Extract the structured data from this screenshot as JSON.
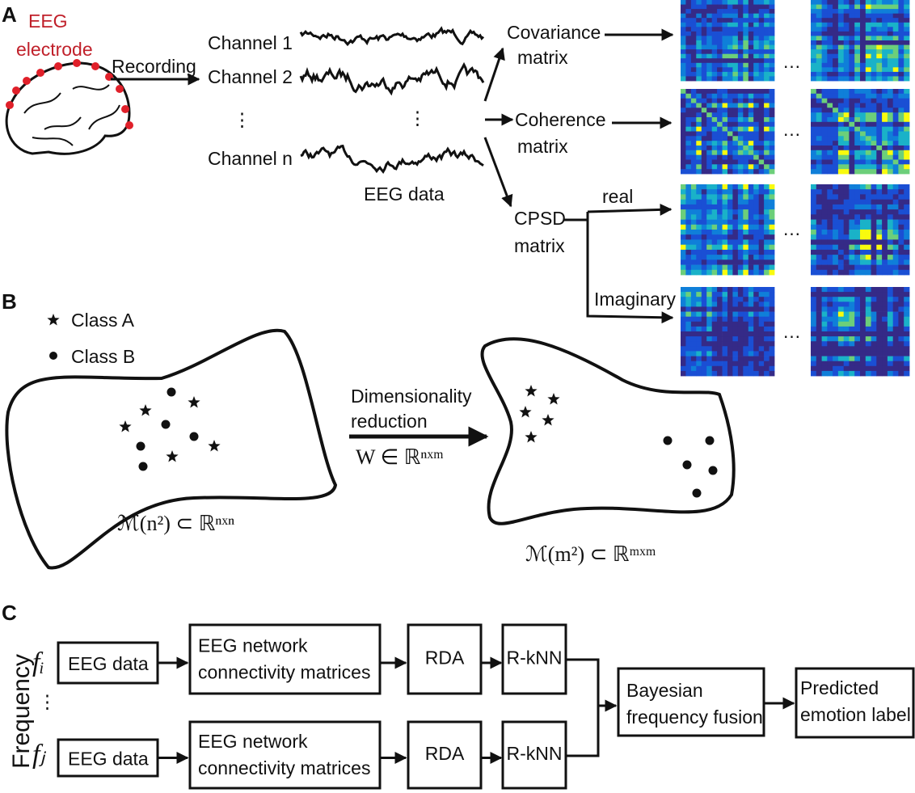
{
  "panel_a": {
    "label": "A",
    "electrode_label": [
      "EEG",
      "electrode"
    ],
    "recording": "Recording",
    "channels": [
      "Channel 1",
      "Channel 2",
      "Channel n"
    ],
    "vertical_ellipsis": "⋮",
    "eeg_data": "EEG data",
    "covariance": [
      "Covariance",
      "matrix"
    ],
    "coherence": [
      "Coherence",
      "matrix"
    ],
    "cpsd": [
      "CPSD",
      "matrix"
    ],
    "real": "real",
    "imaginary": "Imaginary",
    "ellipsis": "…"
  },
  "panel_b": {
    "label": "B",
    "legend": [
      "Class A",
      "Class B"
    ],
    "reduction": [
      "Dimensionality",
      "reduction"
    ],
    "projection": "W ∈ ℝⁿˣᵐ",
    "source_manifold": "ℳ(n²) ⊂ ℝⁿˣⁿ",
    "target_manifold": "ℳ(m²) ⊂ ℝᵐˣᵐ"
  },
  "panel_c": {
    "label": "C",
    "axis": "Frequency",
    "frequencies": [
      "fᵢ",
      "fⱼ"
    ],
    "vertical_ellipsis": "⋮",
    "rows": [
      {
        "input": "EEG data",
        "network": [
          "EEG network",
          "connectivity matrices"
        ],
        "rda": "RDA",
        "classifier": "R-kNN"
      },
      {
        "input": "EEG data",
        "network": [
          "EEG network",
          "connectivity matrices"
        ],
        "rda": "RDA",
        "classifier": "R-kNN"
      }
    ],
    "fusion": [
      "Bayesian",
      "frequency fusion"
    ],
    "output": [
      "Predicted",
      "emotion label"
    ]
  }
}
